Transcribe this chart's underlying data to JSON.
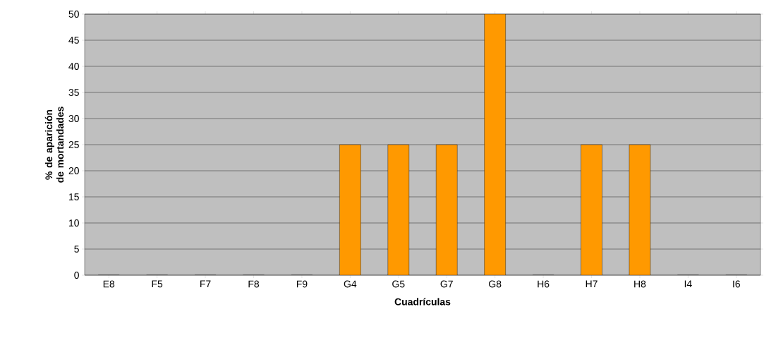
{
  "chart_data": {
    "type": "bar",
    "xlabel": "Cuadrículas",
    "ylabel": "% de aparición de mortandades",
    "categories": [
      "E8",
      "F5",
      "F7",
      "F8",
      "F9",
      "G4",
      "G5",
      "G7",
      "G8",
      "H6",
      "H7",
      "H8",
      "I4",
      "I6"
    ],
    "values": [
      0,
      0,
      0,
      0,
      0,
      25,
      25,
      25,
      50,
      0,
      25,
      25,
      0,
      0
    ],
    "color": "#ff9900",
    "ylim": [
      0,
      50
    ],
    "yticks": [
      0,
      5,
      10,
      15,
      20,
      25,
      30,
      35,
      40,
      45,
      50
    ],
    "grid": "y"
  }
}
